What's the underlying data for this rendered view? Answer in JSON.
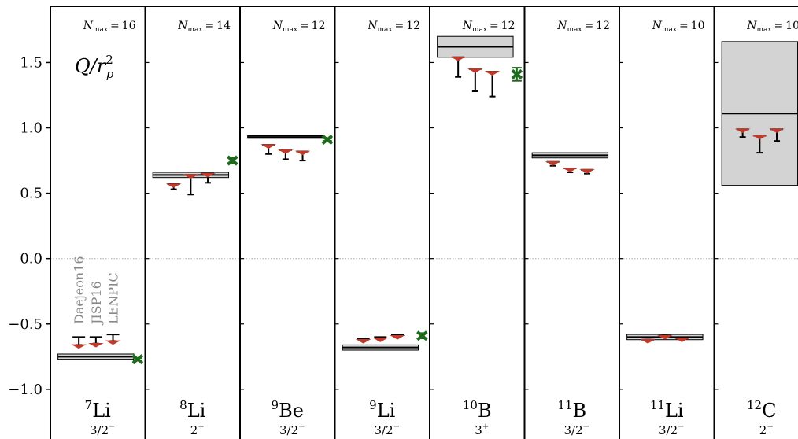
{
  "chart_data": {
    "type": "multi-panel",
    "y_label": {
      "main": "Q/r",
      "sub": "p",
      "sup": "2"
    },
    "nmax_label": {
      "symbol": "N",
      "sub": "max",
      "eq": "="
    },
    "ylim": [
      -1.38,
      1.93
    ],
    "yticks": [
      {
        "value": -1.0,
        "label": "−1.0"
      },
      {
        "value": -0.5,
        "label": "−0.5"
      },
      {
        "value": 0.0,
        "label": "0.0"
      },
      {
        "value": 0.5,
        "label": "0.5"
      },
      {
        "value": 1.0,
        "label": "1.0"
      },
      {
        "value": 1.5,
        "label": "1.5"
      }
    ],
    "reference_line": 0,
    "exp_color": "#d3d3d3",
    "extra_color": "#1e6b1e",
    "series": [
      {
        "name": "Daejeon16",
        "color": "#c0392b"
      },
      {
        "name": "JISP16",
        "color": "#c0392b"
      },
      {
        "name": "LENPIC",
        "color": "#c0392b"
      }
    ],
    "panels": [
      {
        "mass": 7,
        "element": "Li",
        "spin": "3/2",
        "parity": "−",
        "nmax": 16,
        "exp": {
          "value": -0.75,
          "error": 0.02
        },
        "theory": [
          {
            "value": -0.66,
            "low": -0.66,
            "high": -0.6
          },
          {
            "value": -0.65,
            "low": -0.65,
            "high": -0.6
          },
          {
            "value": -0.63,
            "low": -0.63,
            "high": -0.58
          }
        ],
        "extra": {
          "value": -0.77,
          "error": 0.01
        }
      },
      {
        "mass": 8,
        "element": "Li",
        "spin": "2",
        "parity": "+",
        "nmax": 14,
        "exp": {
          "value": 0.64,
          "error": 0.02
        },
        "theory": [
          {
            "value": 0.57,
            "low": 0.53,
            "high": 0.57
          },
          {
            "value": 0.64,
            "low": 0.49,
            "high": 0.64
          },
          {
            "value": 0.65,
            "low": 0.58,
            "high": 0.65
          }
        ],
        "extra": {
          "value": 0.75,
          "error": 0.02
        }
      },
      {
        "mass": 9,
        "element": "Be",
        "spin": "3/2",
        "parity": "−",
        "nmax": 12,
        "exp": {
          "value": 0.93,
          "error": 0.01
        },
        "theory": [
          {
            "value": 0.87,
            "low": 0.8,
            "high": 0.87
          },
          {
            "value": 0.83,
            "low": 0.76,
            "high": 0.83
          },
          {
            "value": 0.82,
            "low": 0.75,
            "high": 0.82
          }
        ],
        "extra": {
          "value": 0.91,
          "error": 0.01
        }
      },
      {
        "mass": 9,
        "element": "Li",
        "spin": "3/2",
        "parity": "−",
        "nmax": 12,
        "exp": {
          "value": -0.68,
          "error": 0.02
        },
        "theory": [
          {
            "value": -0.62,
            "low": -0.63,
            "high": -0.61
          },
          {
            "value": -0.61,
            "low": -0.62,
            "high": -0.6
          },
          {
            "value": -0.59,
            "low": -0.6,
            "high": -0.58
          }
        ],
        "extra": {
          "value": -0.59,
          "error": 0.02
        }
      },
      {
        "mass": 10,
        "element": "B",
        "spin": "3",
        "parity": "+",
        "nmax": 12,
        "exp": {
          "value": 1.62,
          "error": 0.08
        },
        "theory": [
          {
            "value": 1.54,
            "low": 1.39,
            "high": 1.54
          },
          {
            "value": 1.45,
            "low": 1.28,
            "high": 1.45
          },
          {
            "value": 1.43,
            "low": 1.24,
            "high": 1.43
          }
        ],
        "extra": {
          "value": 1.41,
          "error": 0.05
        }
      },
      {
        "mass": 11,
        "element": "B",
        "spin": "3/2",
        "parity": "−",
        "nmax": 12,
        "exp": {
          "value": 0.79,
          "error": 0.02
        },
        "theory": [
          {
            "value": 0.74,
            "low": 0.71,
            "high": 0.74
          },
          {
            "value": 0.69,
            "low": 0.66,
            "high": 0.69
          },
          {
            "value": 0.68,
            "low": 0.65,
            "high": 0.68
          }
        ]
      },
      {
        "mass": 11,
        "element": "Li",
        "spin": "3/2",
        "parity": "−",
        "nmax": 10,
        "exp": {
          "value": -0.6,
          "error": 0.02
        },
        "theory": [
          {
            "value": -0.62,
            "low": -0.62,
            "high": -0.62
          },
          {
            "value": -0.59,
            "low": -0.59,
            "high": -0.59
          },
          {
            "value": -0.61,
            "low": -0.61,
            "high": -0.61
          }
        ]
      },
      {
        "mass": 12,
        "element": "C",
        "spin": "2",
        "parity": "+",
        "nmax": 10,
        "exp": {
          "value": 1.11,
          "error": 0.55
        },
        "theory": [
          {
            "value": 0.99,
            "low": 0.93,
            "high": 0.99
          },
          {
            "value": 0.94,
            "low": 0.81,
            "high": 0.94
          },
          {
            "value": 0.99,
            "low": 0.9,
            "high": 0.99
          }
        ]
      }
    ]
  }
}
